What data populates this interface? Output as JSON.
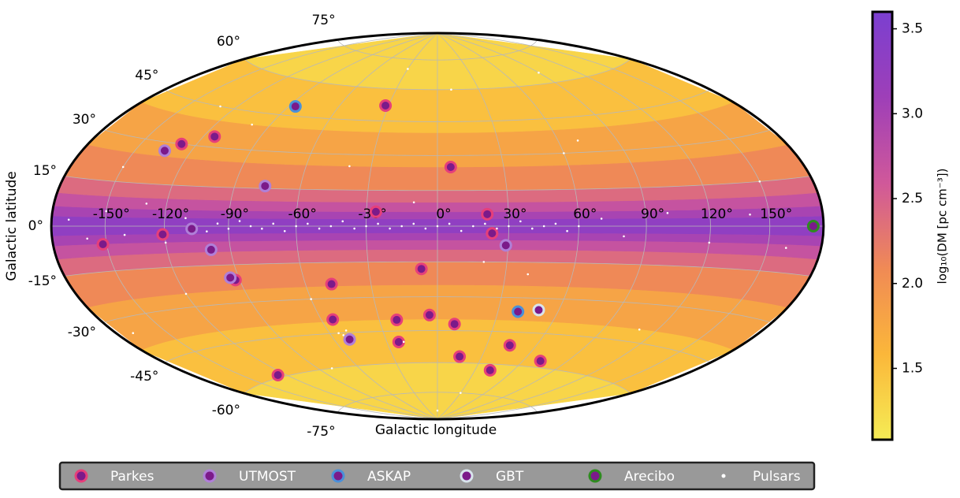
{
  "chart_data": {
    "type": "scatter",
    "projection": "hammer",
    "x_label": "Galactic longitude",
    "y_label": "Galactic latitude",
    "xlim": [
      -180,
      180
    ],
    "ylim": [
      -90,
      90
    ],
    "xticks": [
      {
        "value": -150,
        "label": "-150°"
      },
      {
        "value": -120,
        "label": "-120°"
      },
      {
        "value": -90,
        "label": "-90°"
      },
      {
        "value": -60,
        "label": "-60°"
      },
      {
        "value": -30,
        "label": "-30°"
      },
      {
        "value": 0,
        "label": "0°"
      },
      {
        "value": 30,
        "label": "30°"
      },
      {
        "value": 60,
        "label": "60°"
      },
      {
        "value": 90,
        "label": "90°"
      },
      {
        "value": 120,
        "label": "120°"
      },
      {
        "value": 150,
        "label": "150°"
      }
    ],
    "yticks": [
      {
        "value": -75,
        "label": "-75°"
      },
      {
        "value": -60,
        "label": "-60°"
      },
      {
        "value": -45,
        "label": "-45°"
      },
      {
        "value": -30,
        "label": "-30°"
      },
      {
        "value": -15,
        "label": "-15°"
      },
      {
        "value": 0,
        "label": "0°"
      },
      {
        "value": 15,
        "label": "15°"
      },
      {
        "value": 30,
        "label": "30°"
      },
      {
        "value": 45,
        "label": "45°"
      },
      {
        "value": 60,
        "label": "60°"
      },
      {
        "value": 75,
        "label": "75°"
      }
    ],
    "grid": true,
    "colorbar_label": "log₁₀(DM [pc cm⁻³])",
    "clim": [
      1.08,
      3.6
    ],
    "cticks": [
      1.5,
      {
        "value": 2,
        "label": "2.0"
      },
      2.5,
      {
        "value": 3,
        "label": "3.0"
      },
      3.5
    ],
    "colormap": [
      "#f5ec55",
      "#fbb73a",
      "#f08a55",
      "#d0589a",
      "#9e3fb8",
      "#7b3fd0"
    ],
    "dm_profile": {
      "latitude": [
        0,
        3,
        6,
        10,
        15,
        25,
        40,
        60,
        90
      ],
      "values": [
        3.3,
        3.0,
        2.7,
        2.4,
        2.1,
        1.8,
        1.5,
        1.3
      ]
    },
    "marker_fill": "#7b1a8a",
    "legend": "lower center",
    "series": [
      {
        "name": "Parkes",
        "color": "#e63f7a",
        "x": [
          -32,
          -128,
          -114,
          6,
          -152,
          -121,
          23,
          -92,
          -48,
          -7,
          -54,
          -21,
          -4,
          9,
          -23,
          15,
          44,
          72,
          42,
          -126,
          21,
          -26
        ],
        "values": [
          52,
          30,
          34,
          25,
          -6,
          -3,
          -3,
          -21,
          -24,
          -18,
          -39,
          -40,
          -38,
          -42,
          -50,
          -57,
          -51,
          -57,
          -63,
          -59,
          5,
          6
        ]
      },
      {
        "name": "UTMOST",
        "color": "#b07fd8",
        "x": [
          -134,
          -107,
          -99,
          -51,
          -94,
          -76,
          29
        ],
        "values": [
          27,
          -1,
          -9,
          -48,
          -20,
          16,
          -8
        ]
      },
      {
        "name": "ASKAP",
        "color": "#4a90d9",
        "x": [
          -86,
          40
        ],
        "values": [
          49,
          -36
        ]
      },
      {
        "name": "GBT",
        "color": "#d8e4ec",
        "x": [
          50
        ],
        "values": [
          -35
        ]
      },
      {
        "name": "Arecibo",
        "color": "#2e8b1f",
        "x": [
          174
        ],
        "values": [
          0
        ]
      },
      {
        "name": "Pulsars",
        "color": "#ffffff",
        "x": [
          -170,
          -160,
          -150,
          -140,
          -130,
          -120,
          -110,
          -100,
          -95,
          -90,
          -85,
          -80,
          -75,
          -70,
          -65,
          -60,
          -55,
          -50,
          -45,
          -40,
          -35,
          -30,
          -25,
          -20,
          -15,
          -10,
          -5,
          0,
          5,
          10,
          15,
          20,
          25,
          30,
          35,
          40,
          45,
          50,
          55,
          60,
          70,
          80,
          100,
          120,
          140,
          160,
          -150,
          -120,
          -100,
          -60,
          -40,
          -20,
          10,
          40,
          70,
          110,
          150,
          -130,
          -80,
          -30,
          20,
          60,
          -170,
          -50,
          -55,
          -53,
          0,
          30,
          90,
          -10
        ],
        "values": [
          2,
          -4,
          5,
          -3,
          8,
          -6,
          3,
          -2,
          1,
          -1,
          2,
          0,
          -1,
          1,
          -2,
          0,
          1,
          -1,
          0,
          2,
          -1,
          0,
          1,
          -1,
          0,
          1,
          -1,
          0,
          1,
          -2,
          0,
          1,
          -1,
          0,
          2,
          -1,
          0,
          1,
          -2,
          0,
          3,
          -4,
          5,
          -6,
          4,
          -7,
          20,
          -25,
          40,
          -30,
          25,
          -50,
          60,
          -20,
          35,
          -40,
          15,
          45,
          -60,
          70,
          -15,
          30,
          -35,
          -44,
          -45,
          -46,
          -85,
          -75,
          65,
          10
        ]
      }
    ]
  }
}
